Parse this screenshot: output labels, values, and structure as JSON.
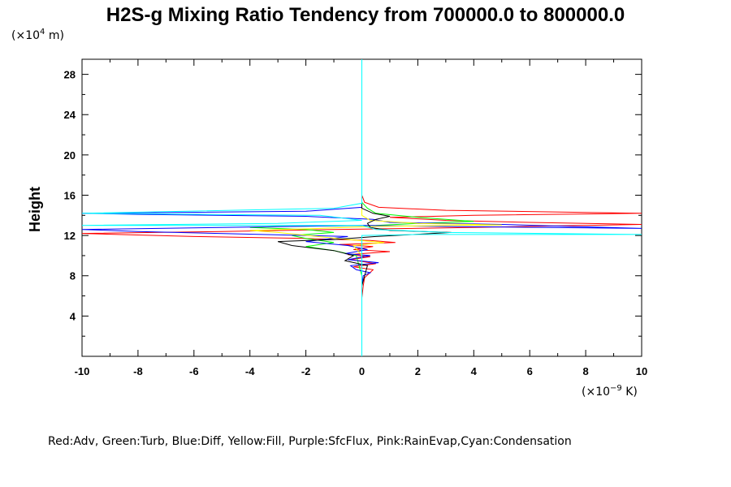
{
  "chart_data": {
    "type": "line",
    "title": "H2S-g Mixing Ratio Tendency from 700000.0 to 800000.0",
    "ylabel": "Height",
    "y_unit": "(×10",
    "y_unit_exp": "4",
    "y_unit_tail": " m)",
    "x_unit": "(×10",
    "x_unit_exp": "−9",
    "x_unit_tail": " K)",
    "xlim": [
      -10,
      10
    ],
    "ylim": [
      0,
      29.5
    ],
    "x_ticks": [
      -10,
      -8,
      -6,
      -4,
      -2,
      0,
      2,
      4,
      6,
      8,
      10
    ],
    "x_tick_labels": [
      "-10",
      "-8",
      "-6",
      "-4",
      "-2",
      "0",
      "2",
      "4",
      "6",
      "8",
      "10"
    ],
    "y_ticks": [
      4,
      8,
      12,
      16,
      20,
      24,
      28
    ],
    "y_tick_labels": [
      "4",
      "8",
      "12",
      "16",
      "20",
      "24",
      "28"
    ],
    "legend_text": "Red:Adv, Green:Turb, Blue:Diff, Yellow:Fill, Purple:SfcFlux, Pink:RainEvap,Cyan:Condensation",
    "grid": false,
    "series": [
      {
        "color": "#ff0000",
        "points": [
          [
            0,
            5.8
          ],
          [
            0.05,
            7
          ],
          [
            0.1,
            7.8
          ],
          [
            0.4,
            8.6
          ],
          [
            -0.3,
            8.9
          ],
          [
            0.5,
            9.2
          ],
          [
            -0.4,
            9.6
          ],
          [
            0.3,
            9.9
          ],
          [
            -0.5,
            10.1
          ],
          [
            1.0,
            10.4
          ],
          [
            -0.3,
            10.6
          ],
          [
            0.4,
            10.9
          ],
          [
            -0.8,
            11.1
          ],
          [
            1.2,
            11.3
          ],
          [
            0.3,
            11.5
          ],
          [
            -2,
            11.7
          ],
          [
            -6,
            11.9
          ],
          [
            -10,
            12.2
          ],
          [
            -5,
            12.4
          ],
          [
            -1,
            12.6
          ],
          [
            3,
            12.75
          ],
          [
            7,
            12.95
          ],
          [
            10,
            13.1
          ],
          [
            6,
            13.3
          ],
          [
            3,
            13.5
          ],
          [
            1,
            13.8
          ],
          [
            4,
            14.0
          ],
          [
            10,
            14.2
          ],
          [
            3,
            14.5
          ],
          [
            0.6,
            14.8
          ],
          [
            0.1,
            15.3
          ],
          [
            0,
            16
          ],
          [
            0,
            29.5
          ]
        ]
      },
      {
        "color": "#00ff00",
        "points": [
          [
            0,
            6.0
          ],
          [
            0,
            8.0
          ],
          [
            -0.2,
            10.0
          ],
          [
            -1.0,
            10.5
          ],
          [
            -2.0,
            10.9
          ],
          [
            -1.0,
            11.3
          ],
          [
            -2.0,
            11.7
          ],
          [
            -2.5,
            12.0
          ],
          [
            -1.0,
            12.3
          ],
          [
            -2.0,
            12.6
          ],
          [
            -4.0,
            12.8
          ],
          [
            -3.0,
            12.9
          ],
          [
            0.5,
            13.0
          ],
          [
            2.0,
            13.2
          ],
          [
            4.0,
            13.4
          ],
          [
            2.0,
            13.8
          ],
          [
            0.5,
            14.2
          ],
          [
            0.2,
            14.7
          ],
          [
            0,
            15.3
          ],
          [
            0,
            29.5
          ]
        ]
      },
      {
        "color": "#0000ff",
        "points": [
          [
            0,
            7.0
          ],
          [
            0.05,
            8.0
          ],
          [
            0.3,
            8.3
          ],
          [
            -0.2,
            8.6
          ],
          [
            -0.4,
            9.0
          ],
          [
            0.6,
            9.3
          ],
          [
            -0.5,
            9.6
          ],
          [
            0.3,
            10.0
          ],
          [
            -0.6,
            10.2
          ],
          [
            0.2,
            10.6
          ],
          [
            -0.5,
            11.0
          ],
          [
            -2.0,
            11.4
          ],
          [
            -0.5,
            11.9
          ],
          [
            -8.0,
            12.4
          ],
          [
            -10,
            12.6
          ],
          [
            -5.0,
            12.8
          ],
          [
            0,
            13.0
          ],
          [
            3.0,
            12.9
          ],
          [
            10,
            12.7
          ],
          [
            5.0,
            13.1
          ],
          [
            1.0,
            13.3
          ],
          [
            0.4,
            13.6
          ],
          [
            -2.0,
            13.9
          ],
          [
            -8.0,
            14.1
          ],
          [
            -10,
            14.2
          ],
          [
            -2.0,
            14.4
          ],
          [
            0,
            14.8
          ],
          [
            0,
            29.5
          ]
        ]
      },
      {
        "color": "#ffff00",
        "points": [
          [
            0,
            10.0
          ],
          [
            -0.3,
            11.0
          ],
          [
            0.8,
            11.3
          ],
          [
            -0.5,
            11.6
          ],
          [
            -3.0,
            12.3
          ],
          [
            -4.0,
            12.5
          ],
          [
            -1.5,
            12.7
          ],
          [
            0.4,
            12.9
          ],
          [
            3.5,
            13.0
          ],
          [
            5.0,
            13.05
          ],
          [
            2.0,
            13.2
          ],
          [
            0.3,
            13.5
          ],
          [
            0,
            14
          ],
          [
            0,
            29.5
          ]
        ]
      },
      {
        "color": "#000000",
        "points": [
          [
            0,
            7.0
          ],
          [
            0.1,
            8.0
          ],
          [
            0.2,
            9.0
          ],
          [
            -0.6,
            9.5
          ],
          [
            -0.3,
            10.0
          ],
          [
            -1.0,
            10.5
          ],
          [
            -2.5,
            11.0
          ],
          [
            -3.0,
            11.4
          ],
          [
            -1.0,
            11.6
          ],
          [
            0.5,
            11.9
          ],
          [
            3.2,
            12.3
          ],
          [
            1.0,
            12.5
          ],
          [
            0.3,
            12.8
          ],
          [
            0.2,
            13.2
          ],
          [
            0.5,
            13.6
          ],
          [
            1.0,
            13.9
          ],
          [
            0.4,
            14.2
          ],
          [
            0,
            14.7
          ],
          [
            0,
            29.5
          ]
        ]
      },
      {
        "color": "#00ffff",
        "points": [
          [
            0,
            0
          ],
          [
            0,
            12.0
          ],
          [
            2,
            12.1
          ],
          [
            10,
            12.1
          ],
          [
            3,
            12.3
          ],
          [
            0.5,
            12.6
          ],
          [
            0,
            13.0
          ],
          [
            -10,
            13.0
          ],
          [
            -3,
            13.2
          ],
          [
            0,
            13.5
          ],
          [
            -1.5,
            14.0
          ],
          [
            -10,
            14.2
          ],
          [
            -1,
            14.7
          ],
          [
            0,
            15.2
          ],
          [
            0,
            29.5
          ]
        ]
      }
    ]
  }
}
